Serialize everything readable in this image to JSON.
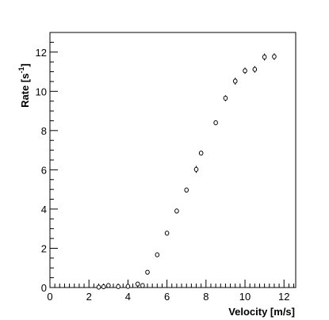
{
  "chart_data": {
    "type": "scatter",
    "xlabel": "Velocity [m/s]",
    "ylabel": "Rate [s",
    "ylabel_sup": "-1",
    "ylabel_close": "]",
    "xlim": [
      0,
      12.6
    ],
    "ylim": [
      0,
      13
    ],
    "xticks": [
      0,
      2,
      4,
      6,
      8,
      10,
      12
    ],
    "yticks": [
      0,
      2,
      4,
      6,
      8,
      10,
      12
    ],
    "x_minor_step": 0.25,
    "y_minor_step": 0.5,
    "grid": false,
    "marker": "open-circle",
    "series": [
      {
        "points": [
          {
            "x": 2.5,
            "y": 0.02,
            "err": 0.02
          },
          {
            "x": 2.75,
            "y": 0.04,
            "err": 0.03
          },
          {
            "x": 3.0,
            "y": 0.1,
            "err": 0.05
          },
          {
            "x": 3.5,
            "y": 0.05,
            "err": 0.04
          },
          {
            "x": 4.0,
            "y": 0.06,
            "err": 0.12
          },
          {
            "x": 4.5,
            "y": 0.18,
            "err": 0.1
          },
          {
            "x": 4.75,
            "y": 0.1,
            "err": 0.05
          },
          {
            "x": 5.0,
            "y": 0.78,
            "err": 0.04
          },
          {
            "x": 5.5,
            "y": 1.67,
            "err": 0.05
          },
          {
            "x": 6.0,
            "y": 2.77,
            "err": 0.05
          },
          {
            "x": 6.5,
            "y": 3.9,
            "err": 0.07
          },
          {
            "x": 7.0,
            "y": 4.97,
            "err": 0.1
          },
          {
            "x": 7.5,
            "y": 6.02,
            "err": 0.18
          },
          {
            "x": 7.75,
            "y": 6.85,
            "err": 0.1
          },
          {
            "x": 8.5,
            "y": 8.4,
            "err": 0.12
          },
          {
            "x": 9.0,
            "y": 9.65,
            "err": 0.15
          },
          {
            "x": 9.5,
            "y": 10.52,
            "err": 0.18
          },
          {
            "x": 10.0,
            "y": 11.05,
            "err": 0.16
          },
          {
            "x": 10.5,
            "y": 11.12,
            "err": 0.17
          },
          {
            "x": 11.0,
            "y": 11.75,
            "err": 0.18
          },
          {
            "x": 11.5,
            "y": 11.77,
            "err": 0.17
          }
        ]
      }
    ]
  }
}
